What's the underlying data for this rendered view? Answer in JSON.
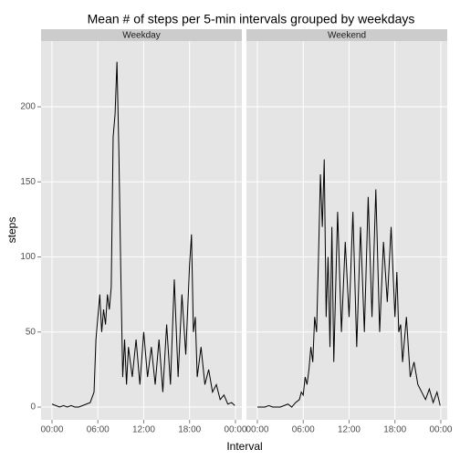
{
  "chart_data": {
    "type": "line",
    "facet": true,
    "title": "Mean # of steps per 5-min intervals grouped by weekdays",
    "xlabel": "Interval",
    "ylabel": "steps",
    "x": [
      0,
      0.5,
      1,
      1.5,
      2,
      2.5,
      3,
      3.5,
      4,
      4.5,
      5,
      5.5,
      5.75,
      6,
      6.25,
      6.5,
      6.75,
      7,
      7.25,
      7.5,
      7.75,
      8,
      8.25,
      8.5,
      8.75,
      9,
      9.25,
      9.5,
      9.75,
      10,
      10.5,
      11,
      11.5,
      12,
      12.5,
      13,
      13.5,
      14,
      14.5,
      15,
      15.5,
      16,
      16.5,
      17,
      17.5,
      18,
      18.25,
      18.5,
      18.75,
      19,
      19.5,
      20,
      20.5,
      21,
      21.5,
      22,
      22.5,
      23,
      23.5,
      23.92
    ],
    "series": [
      {
        "name": "Weekday",
        "color": "#000000",
        "values": [
          2,
          1,
          0,
          1,
          0,
          1,
          0,
          0,
          1,
          2,
          3,
          10,
          45,
          60,
          75,
          50,
          65,
          55,
          75,
          65,
          80,
          180,
          195,
          230,
          170,
          90,
          20,
          45,
          15,
          40,
          20,
          45,
          15,
          50,
          20,
          40,
          15,
          45,
          10,
          55,
          15,
          85,
          20,
          75,
          35,
          95,
          115,
          50,
          60,
          20,
          40,
          15,
          25,
          10,
          15,
          5,
          8,
          2,
          3,
          1
        ]
      },
      {
        "name": "Weekend",
        "color": "#000000",
        "values": [
          0,
          0,
          0,
          1,
          0,
          0,
          0,
          1,
          2,
          0,
          3,
          5,
          10,
          8,
          20,
          15,
          25,
          40,
          30,
          60,
          50,
          100,
          155,
          120,
          165,
          60,
          100,
          40,
          120,
          30,
          130,
          50,
          110,
          60,
          130,
          40,
          120,
          50,
          140,
          60,
          145,
          50,
          110,
          70,
          120,
          60,
          90,
          50,
          55,
          30,
          60,
          20,
          30,
          15,
          10,
          5,
          12,
          3,
          10,
          1
        ]
      }
    ],
    "xlim": [
      -1.43,
      24.84
    ],
    "xticks": [
      {
        "value": 0,
        "label": "00:00"
      },
      {
        "value": 6,
        "label": "06:00"
      },
      {
        "value": 12,
        "label": "12:00"
      },
      {
        "value": 18,
        "label": "18:00"
      },
      {
        "value": 24,
        "label": "00:00"
      }
    ],
    "ylim": [
      -8.5,
      243.8
    ],
    "yticks": [
      0,
      50,
      100,
      150,
      200
    ],
    "grid": true
  }
}
